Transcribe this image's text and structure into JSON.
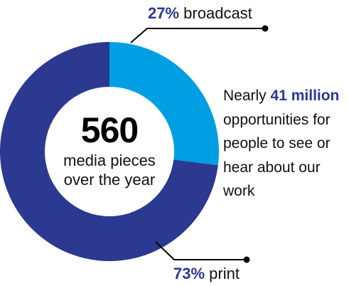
{
  "chart_data": {
    "type": "pie",
    "style": "donut",
    "center": {
      "value": "560",
      "label": "media pieces over the year"
    },
    "slices": [
      {
        "label": "broadcast",
        "value": 27,
        "value_text": "27%",
        "color": "#009fe3"
      },
      {
        "label": "print",
        "value": 73,
        "value_text": "73%",
        "color": "#2b3990"
      }
    ],
    "annotation": {
      "prefix": "Nearly",
      "highlight": "41 million",
      "suffix": "opportunities for people to see or hear about our work"
    }
  }
}
